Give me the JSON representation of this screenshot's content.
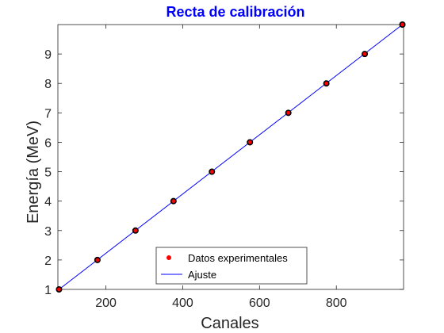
{
  "colors": {
    "title": "#0000ff",
    "fit_line": "#0000ff",
    "data_marker": "#ff0000",
    "marker_edge": "#000000",
    "axes": "#262626",
    "background": "#ffffff"
  },
  "chart_data": {
    "type": "scatter",
    "title": "Recta de calibración",
    "xlabel": "Canales",
    "ylabel": "Energía (MeV)",
    "xlim": [
      75,
      975
    ],
    "ylim": [
      1,
      10
    ],
    "xticks": [
      200,
      400,
      600,
      800
    ],
    "yticks": [
      1,
      2,
      3,
      4,
      5,
      6,
      7,
      8,
      9
    ],
    "grid": false,
    "box": true,
    "legend_position": "bottom-center",
    "series": [
      {
        "name": "Datos experimentales",
        "kind": "markers",
        "color": "#ff0000",
        "x": [
          78,
          178,
          277,
          376,
          476,
          575,
          675,
          774,
          874,
          972
        ],
        "y": [
          1,
          2,
          3,
          4,
          5,
          6,
          7,
          8,
          9,
          10
        ]
      },
      {
        "name": "Ajuste",
        "kind": "line",
        "color": "#0000ff",
        "x": [
          75,
          975
        ],
        "y": [
          0.97,
          10.03
        ]
      }
    ]
  }
}
